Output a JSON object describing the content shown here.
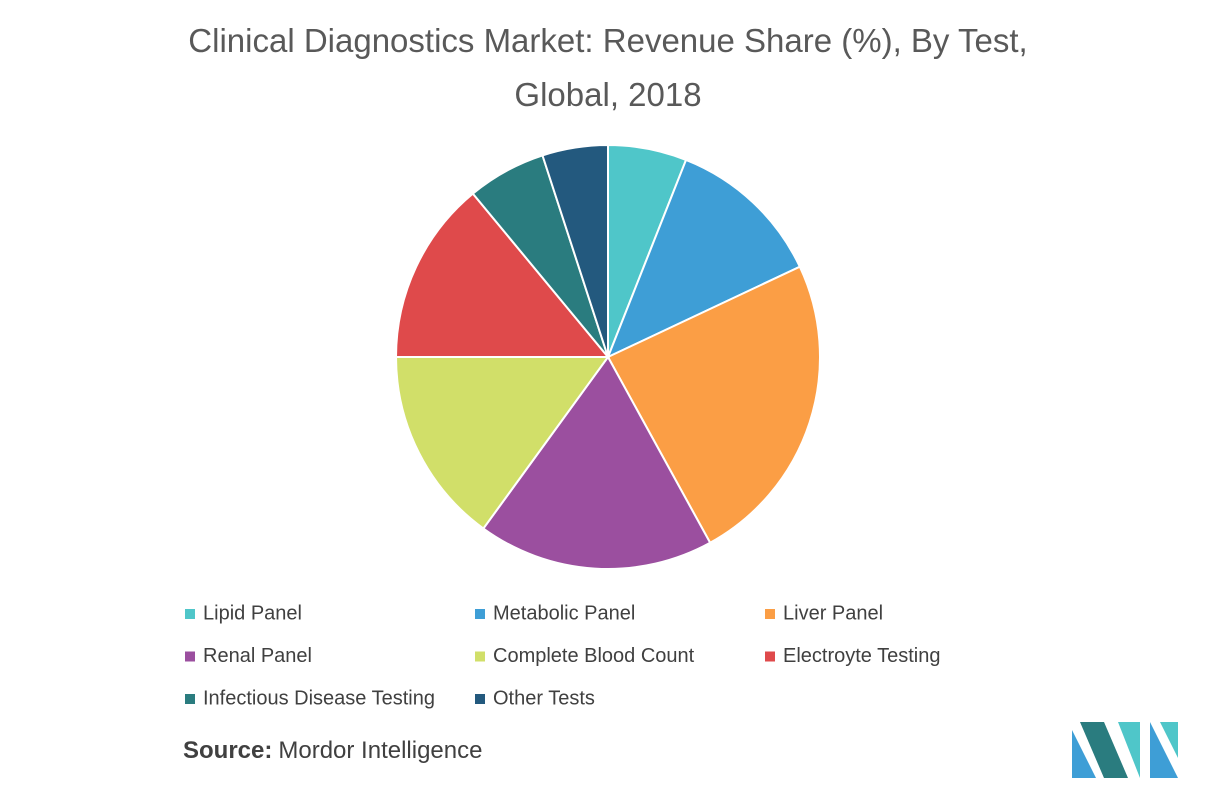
{
  "chart_data": {
    "type": "pie",
    "title": [
      "Clinical Diagnostics Market: Revenue Share (%), By Test,",
      "Global, 2018"
    ],
    "categories": [
      "Lipid Panel",
      "Metabolic Panel",
      "Liver Panel",
      "Renal Panel",
      "Complete Blood Count",
      "Electroyte Testing",
      "Infectious Disease Testing",
      "Other Tests"
    ],
    "values": [
      6,
      12,
      24,
      18,
      15,
      14,
      6,
      5
    ],
    "colors": [
      "#4fc6c9",
      "#3e9ed6",
      "#fb9e45",
      "#9b4f9f",
      "#d1df69",
      "#df4a4b",
      "#2a7c7f",
      "#23597e"
    ]
  },
  "source": {
    "label": "Source:",
    "text": "Mordor Intelligence"
  }
}
